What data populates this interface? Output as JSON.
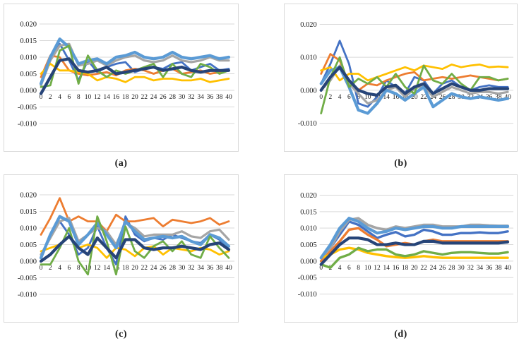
{
  "page": {
    "background": "#ffffff",
    "panel_border_color": "#d9d9d9",
    "gridline_color": "#d9d9d9",
    "tick_label_color": "#1a1a1a"
  },
  "chart_data": [
    {
      "id": "a",
      "caption": "(a)",
      "type": "line",
      "title": "",
      "xlabel": "",
      "ylabel": "",
      "legend": "none",
      "grid": true,
      "ylim": [
        -0.01,
        0.02
      ],
      "y_ticks": [
        0.02,
        0.015,
        0.01,
        0.005,
        0.0,
        -0.005,
        -0.01
      ],
      "y_tick_labels": [
        "0.020",
        "0.015",
        "0.010",
        "0.005",
        "0.000",
        "-0.005",
        "-0.010"
      ],
      "x": [
        0,
        2,
        4,
        6,
        8,
        10,
        12,
        14,
        16,
        18,
        20,
        22,
        24,
        26,
        28,
        30,
        32,
        34,
        36,
        38,
        40
      ],
      "x_tick_labels": [
        "0",
        "2",
        "4",
        "6",
        "8",
        "10",
        "12",
        "14",
        "16",
        "18",
        "20",
        "22",
        "24",
        "26",
        "28",
        "30",
        "32",
        "34",
        "36",
        "38",
        "40"
      ],
      "series": [
        {
          "name": "blue",
          "color": "#4472C4",
          "width": 2.8,
          "values": [
            0.002,
            0.01,
            0.014,
            0.009,
            0.003,
            0.009,
            0.0055,
            0.007,
            0.008,
            0.0085,
            0.0055,
            0.0065,
            0.007,
            0.0065,
            0.008,
            0.0085,
            0.006,
            0.007,
            0.008,
            0.006,
            0.0065
          ]
        },
        {
          "name": "orange",
          "color": "#ED7D31",
          "width": 2.8,
          "values": [
            0.004,
            0.0105,
            0.01,
            0.006,
            0.005,
            0.0045,
            0.005,
            0.0055,
            0.0045,
            0.006,
            0.0065,
            0.006,
            0.005,
            0.006,
            0.0065,
            0.005,
            0.0055,
            0.006,
            0.005,
            0.0055,
            0.006
          ]
        },
        {
          "name": "gray",
          "color": "#A5A5A5",
          "width": 3.2,
          "values": [
            0.0015,
            0.009,
            0.0135,
            0.014,
            0.0075,
            0.008,
            0.009,
            0.0075,
            0.009,
            0.01,
            0.0105,
            0.009,
            0.0085,
            0.009,
            0.0105,
            0.009,
            0.0085,
            0.009,
            0.01,
            0.009,
            0.009
          ]
        },
        {
          "name": "yellow",
          "color": "#FFC000",
          "width": 2.8,
          "values": [
            0.005,
            0.008,
            0.006,
            0.006,
            0.0055,
            0.005,
            0.003,
            0.004,
            0.0035,
            0.0025,
            0.004,
            0.004,
            0.003,
            0.0035,
            0.0035,
            0.003,
            0.003,
            0.0035,
            0.0025,
            0.003,
            0.0035
          ]
        },
        {
          "name": "light-blue",
          "color": "#5B9BD5",
          "width": 4.2,
          "values": [
            0.002,
            0.01,
            0.0155,
            0.013,
            0.008,
            0.009,
            0.0095,
            0.008,
            0.01,
            0.0105,
            0.0115,
            0.01,
            0.0095,
            0.01,
            0.0115,
            0.01,
            0.0095,
            0.01,
            0.0105,
            0.0095,
            0.01
          ]
        },
        {
          "name": "green",
          "color": "#70AD47",
          "width": 2.8,
          "values": [
            0.001,
            0.0015,
            0.012,
            0.0135,
            0.002,
            0.0105,
            0.006,
            0.004,
            0.006,
            0.005,
            0.006,
            0.007,
            0.008,
            0.004,
            0.008,
            0.005,
            0.004,
            0.008,
            0.007,
            0.005,
            0.006
          ]
        },
        {
          "name": "navy",
          "color": "#264478",
          "width": 4.2,
          "values": [
            -0.001,
            0.004,
            0.009,
            0.0095,
            0.006,
            0.0055,
            0.006,
            0.007,
            0.005,
            0.0055,
            0.006,
            0.0065,
            0.007,
            0.006,
            0.0065,
            0.007,
            0.006,
            0.0055,
            0.006,
            0.006,
            0.006
          ]
        }
      ]
    },
    {
      "id": "b",
      "caption": "(b)",
      "type": "line",
      "title": "",
      "xlabel": "",
      "ylabel": "",
      "legend": "none",
      "grid": true,
      "ylim": [
        -0.01,
        0.02
      ],
      "y_ticks": [
        0.02,
        0.01,
        0.0,
        -0.01
      ],
      "y_tick_labels": [
        "0.020",
        "0.010",
        "0.000",
        "-0.010"
      ],
      "x": [
        0,
        2,
        4,
        6,
        8,
        10,
        12,
        14,
        16,
        18,
        20,
        22,
        24,
        26,
        28,
        30,
        32,
        34,
        36,
        38,
        40
      ],
      "x_tick_labels": [
        "0",
        "2",
        "4",
        "6",
        "8",
        "10",
        "12",
        "14",
        "16",
        "18",
        "20",
        "22",
        "24",
        "26",
        "28",
        "30",
        "32",
        "34",
        "36",
        "38",
        "40"
      ],
      "series": [
        {
          "name": "blue",
          "color": "#4472C4",
          "width": 2.8,
          "values": [
            0.002,
            0.008,
            0.015,
            0.008,
            -0.004,
            -0.005,
            -0.002,
            0.003,
            0.001,
            -0.001,
            0.004,
            0.003,
            -0.001,
            0.002,
            0.003,
            0.001,
            0.0,
            0.001,
            0.0015,
            0.001,
            0.001
          ]
        },
        {
          "name": "orange",
          "color": "#ED7D31",
          "width": 2.8,
          "values": [
            0.005,
            0.011,
            0.009,
            0.002,
            0.0,
            0.002,
            0.0015,
            0.003,
            0.004,
            0.005,
            0.0055,
            0.003,
            0.0035,
            0.004,
            0.0035,
            0.004,
            0.0045,
            0.004,
            0.0035,
            0.003,
            0.0035
          ]
        },
        {
          "name": "gray",
          "color": "#A5A5A5",
          "width": 3.2,
          "values": [
            0.0,
            0.003,
            0.0075,
            0.002,
            -0.001,
            -0.004,
            -0.003,
            0.0,
            0.001,
            -0.002,
            0.0005,
            0.0015,
            -0.002,
            -0.0005,
            0.001,
            0.0,
            -0.001,
            -0.0005,
            -0.0005,
            -0.001,
            -0.0005
          ]
        },
        {
          "name": "yellow",
          "color": "#FFC000",
          "width": 2.8,
          "values": [
            0.006,
            0.007,
            0.003,
            0.005,
            0.005,
            0.003,
            0.004,
            0.005,
            0.006,
            0.007,
            0.006,
            0.0075,
            0.007,
            0.0065,
            0.0078,
            0.007,
            0.0075,
            0.0078,
            0.007,
            0.0072,
            0.007
          ]
        },
        {
          "name": "light-blue",
          "color": "#5B9BD5",
          "width": 4.2,
          "values": [
            0.002,
            0.006,
            0.007,
            0.001,
            -0.006,
            -0.007,
            -0.004,
            0.0,
            -0.001,
            -0.003,
            -0.001,
            0.001,
            -0.005,
            -0.003,
            -0.001,
            -0.002,
            -0.0025,
            -0.002,
            -0.0025,
            -0.003,
            -0.0025
          ]
        },
        {
          "name": "green",
          "color": "#70AD47",
          "width": 2.8,
          "values": [
            -0.007,
            0.004,
            0.01,
            0.001,
            0.0035,
            0.002,
            0.004,
            0.001,
            0.005,
            0.001,
            -0.001,
            0.0075,
            0.003,
            0.002,
            0.005,
            0.002,
            0.0,
            0.004,
            0.004,
            0.003,
            0.0035
          ]
        },
        {
          "name": "navy",
          "color": "#264478",
          "width": 4.2,
          "values": [
            0.0,
            0.004,
            0.007,
            0.003,
            0.0,
            -0.001,
            -0.0015,
            0.001,
            0.0015,
            -0.001,
            0.001,
            0.002,
            -0.001,
            0.0005,
            0.002,
            0.001,
            0.0,
            0.0,
            0.0005,
            0.0005,
            0.0005
          ]
        }
      ]
    },
    {
      "id": "c",
      "caption": "(c)",
      "type": "line",
      "title": "",
      "xlabel": "",
      "ylabel": "",
      "legend": "none",
      "grid": true,
      "ylim": [
        -0.01,
        0.02
      ],
      "y_ticks": [
        0.02,
        0.015,
        0.01,
        0.005,
        0.0,
        -0.005,
        -0.01
      ],
      "y_tick_labels": [
        "0.020",
        "0.015",
        "0.010",
        "0.005",
        "0.000",
        "-0.005",
        "-0.010"
      ],
      "x": [
        0,
        2,
        4,
        6,
        8,
        10,
        12,
        14,
        16,
        18,
        20,
        22,
        24,
        26,
        28,
        30,
        32,
        34,
        36,
        38,
        40
      ],
      "x_tick_labels": [
        "0",
        "2",
        "4",
        "6",
        "8",
        "10",
        "12",
        "14",
        "16",
        "18",
        "20",
        "22",
        "24",
        "26",
        "28",
        "30",
        "32",
        "34",
        "36",
        "38",
        "40"
      ],
      "series": [
        {
          "name": "blue",
          "color": "#4472C4",
          "width": 2.8,
          "values": [
            0.001,
            0.008,
            0.012,
            0.008,
            0.002,
            0.004,
            0.0105,
            0.004,
            -0.001,
            0.0135,
            0.008,
            0.006,
            0.007,
            0.0065,
            0.008,
            0.007,
            0.006,
            0.0055,
            0.008,
            0.0065,
            0.0035
          ]
        },
        {
          "name": "orange",
          "color": "#ED7D31",
          "width": 2.8,
          "values": [
            0.008,
            0.013,
            0.019,
            0.012,
            0.0135,
            0.012,
            0.012,
            0.009,
            0.014,
            0.012,
            0.012,
            0.0125,
            0.013,
            0.0105,
            0.0125,
            0.012,
            0.0115,
            0.012,
            0.013,
            0.011,
            0.012
          ]
        },
        {
          "name": "gray",
          "color": "#A5A5A5",
          "width": 3.2,
          "values": [
            0.002,
            0.007,
            0.012,
            0.013,
            0.006,
            0.008,
            0.01,
            0.009,
            0.005,
            0.0115,
            0.01,
            0.0075,
            0.008,
            0.008,
            0.008,
            0.009,
            0.0075,
            0.007,
            0.009,
            0.0095,
            0.0065
          ]
        },
        {
          "name": "yellow",
          "color": "#FFC000",
          "width": 2.8,
          "values": [
            0.003,
            0.004,
            0.005,
            0.0075,
            0.004,
            0.005,
            0.004,
            0.001,
            0.004,
            0.0035,
            0.0015,
            0.004,
            0.0045,
            0.002,
            0.004,
            0.0035,
            0.003,
            0.004,
            0.0035,
            0.002,
            0.003
          ]
        },
        {
          "name": "light-blue",
          "color": "#5B9BD5",
          "width": 4.2,
          "values": [
            0.001,
            0.008,
            0.0135,
            0.012,
            0.005,
            0.008,
            0.0115,
            0.008,
            0.004,
            0.012,
            0.009,
            0.0065,
            0.007,
            0.0075,
            0.007,
            0.0075,
            0.006,
            0.005,
            0.008,
            0.007,
            0.0045
          ]
        },
        {
          "name": "green",
          "color": "#70AD47",
          "width": 2.8,
          "values": [
            -0.001,
            -0.001,
            0.004,
            0.01,
            0.0,
            -0.004,
            0.0135,
            0.006,
            -0.004,
            0.0105,
            0.003,
            0.001,
            0.0045,
            0.006,
            0.003,
            0.006,
            0.002,
            0.001,
            0.0075,
            0.004,
            0.001
          ]
        },
        {
          "name": "navy",
          "color": "#264478",
          "width": 4.2,
          "values": [
            0.0,
            0.002,
            0.005,
            0.0075,
            0.004,
            0.002,
            0.007,
            0.004,
            0.001,
            0.0065,
            0.0065,
            0.004,
            0.0035,
            0.004,
            0.004,
            0.0045,
            0.004,
            0.0035,
            0.005,
            0.0055,
            0.0035
          ]
        }
      ]
    },
    {
      "id": "d",
      "caption": "(d)",
      "type": "line",
      "title": "",
      "xlabel": "",
      "ylabel": "",
      "legend": "none",
      "grid": true,
      "ylim": [
        -0.01,
        0.02
      ],
      "y_ticks": [
        0.02,
        0.015,
        0.01,
        0.005,
        0.0,
        -0.005,
        -0.01
      ],
      "y_tick_labels": [
        "0.020",
        "0.015",
        "0.010",
        "0.005",
        "0.000",
        "-0.005",
        "-0.010"
      ],
      "x": [
        0,
        2,
        4,
        6,
        8,
        10,
        12,
        14,
        16,
        18,
        20,
        22,
        24,
        26,
        28,
        30,
        32,
        34,
        36,
        38,
        40
      ],
      "x_tick_labels": [
        "0",
        "2",
        "4",
        "6",
        "8",
        "10",
        "12",
        "14",
        "16",
        "18",
        "20",
        "22",
        "24",
        "26",
        "28",
        "30",
        "32",
        "34",
        "36",
        "38",
        "40"
      ],
      "series": [
        {
          "name": "blue",
          "color": "#4472C4",
          "width": 3.4,
          "values": [
            0.0,
            0.004,
            0.008,
            0.012,
            0.011,
            0.009,
            0.007,
            0.008,
            0.0088,
            0.0075,
            0.008,
            0.0095,
            0.009,
            0.008,
            0.008,
            0.0085,
            0.0085,
            0.0087,
            0.0085,
            0.0085,
            0.009
          ]
        },
        {
          "name": "orange",
          "color": "#ED7D31",
          "width": 3.4,
          "values": [
            0.0,
            0.003,
            0.006,
            0.0095,
            0.01,
            0.008,
            0.0065,
            0.0045,
            0.005,
            0.0055,
            0.005,
            0.006,
            0.0065,
            0.006,
            0.006,
            0.006,
            0.006,
            0.006,
            0.006,
            0.006,
            0.006
          ]
        },
        {
          "name": "gray",
          "color": "#A5A5A5",
          "width": 3.6,
          "values": [
            0.001,
            0.004,
            0.009,
            0.0125,
            0.013,
            0.011,
            0.01,
            0.0095,
            0.0105,
            0.01,
            0.0105,
            0.011,
            0.011,
            0.0105,
            0.0105,
            0.0105,
            0.011,
            0.011,
            0.0108,
            0.0107,
            0.0107
          ]
        },
        {
          "name": "yellow",
          "color": "#FFC000",
          "width": 3.4,
          "values": [
            0.001,
            0.002,
            0.0035,
            0.004,
            0.0035,
            0.0025,
            0.002,
            0.0015,
            0.0012,
            0.001,
            0.0012,
            0.0015,
            0.0012,
            0.001,
            0.001,
            0.001,
            0.001,
            0.001,
            0.001,
            0.001,
            0.001
          ]
        },
        {
          "name": "light-blue",
          "color": "#5B9BD5",
          "width": 4.2,
          "values": [
            0.001,
            0.005,
            0.01,
            0.013,
            0.012,
            0.01,
            0.0085,
            0.009,
            0.01,
            0.0095,
            0.01,
            0.0105,
            0.0105,
            0.01,
            0.01,
            0.0105,
            0.0105,
            0.0105,
            0.0105,
            0.0105,
            0.0105
          ]
        },
        {
          "name": "green",
          "color": "#70AD47",
          "width": 3.4,
          "values": [
            -0.001,
            -0.002,
            0.001,
            0.002,
            0.004,
            0.003,
            0.0035,
            0.0035,
            0.002,
            0.0015,
            0.002,
            0.003,
            0.0025,
            0.002,
            0.0025,
            0.0027,
            0.0027,
            0.0025,
            0.0023,
            0.0023,
            0.0027
          ]
        },
        {
          "name": "navy",
          "color": "#264478",
          "width": 4.2,
          "values": [
            -0.001,
            0.002,
            0.005,
            0.007,
            0.007,
            0.0065,
            0.005,
            0.005,
            0.0055,
            0.005,
            0.005,
            0.006,
            0.006,
            0.0055,
            0.0055,
            0.0055,
            0.0055,
            0.0055,
            0.0055,
            0.0055,
            0.0058
          ]
        }
      ]
    }
  ]
}
